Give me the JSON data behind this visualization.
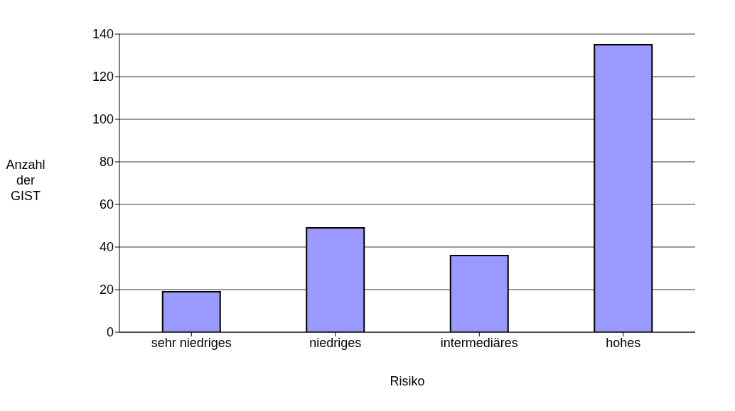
{
  "chart_data": {
    "type": "bar",
    "xlabel": "Risiko",
    "ylabel": "Anzahl der GIST",
    "categories": [
      "sehr niedriges",
      "niedriges",
      "intermediäres",
      "hohes"
    ],
    "values": [
      19,
      49,
      36,
      135
    ],
    "color": "#9999ff",
    "ylim": [
      0,
      140
    ],
    "yticks": [
      0,
      20,
      40,
      60,
      80,
      100,
      120,
      140
    ],
    "grid": "y"
  }
}
